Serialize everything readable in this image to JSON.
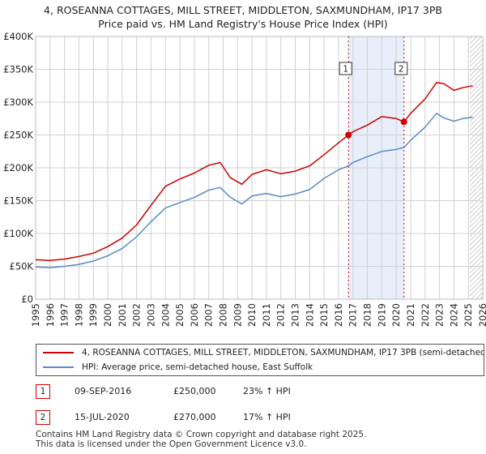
{
  "title_line1": "4, ROSEANNA COTTAGES, MILL STREET, MIDDLETON, SAXMUNDHAM, IP17 3PB",
  "title_line2": "Price paid vs. HM Land Registry's House Price Index (HPI)",
  "colors": {
    "property": "#cc0000",
    "hpi": "#5b8ac6",
    "band": "#e8eefa",
    "grid": "#d0d0d0"
  },
  "legend": {
    "property_label": "4, ROSEANNA COTTAGES, MILL STREET, MIDDLETON, SAXMUNDHAM, IP17 3PB (semi-detached",
    "hpi_label": "HPI: Average price, semi-detached house, East Suffolk"
  },
  "transactions": [
    {
      "num": "1",
      "date": "09-SEP-2016",
      "price": "£250,000",
      "hpi": "23% ↑ HPI"
    },
    {
      "num": "2",
      "date": "15-JUL-2020",
      "price": "£270,000",
      "hpi": "17% ↑ HPI"
    }
  ],
  "footer": {
    "line1": "Contains HM Land Registry data © Crown copyright and database right 2025.",
    "line2": "This data is licensed under the Open Government Licence v3.0."
  },
  "chart_data": {
    "type": "line",
    "title": "4, ROSEANNA COTTAGES, MILL STREET, MIDDLETON, SAXMUNDHAM, IP17 3PB — Price paid vs. HM Land Registry's House Price Index (HPI)",
    "xlabel": "",
    "ylabel": "",
    "xlim": [
      1995,
      2026
    ],
    "ylim": [
      0,
      400000
    ],
    "x_ticks": [
      "1995",
      "1996",
      "1997",
      "1998",
      "1999",
      "2000",
      "2001",
      "2002",
      "2003",
      "2004",
      "2005",
      "2006",
      "2007",
      "2008",
      "2009",
      "2010",
      "2011",
      "2012",
      "2013",
      "2014",
      "2015",
      "2016",
      "2017",
      "2018",
      "2019",
      "2020",
      "2021",
      "2022",
      "2023",
      "2024",
      "2025",
      "2026"
    ],
    "y_ticks": [
      {
        "value": 0,
        "label": "£0"
      },
      {
        "value": 50000,
        "label": "£50K"
      },
      {
        "value": 100000,
        "label": "£100K"
      },
      {
        "value": 150000,
        "label": "£150K"
      },
      {
        "value": 200000,
        "label": "£200K"
      },
      {
        "value": 250000,
        "label": "£250K"
      },
      {
        "value": 300000,
        "label": "£300K"
      },
      {
        "value": 350000,
        "label": "£350K"
      },
      {
        "value": 400000,
        "label": "£400K"
      }
    ],
    "shaded_band": [
      2016.69,
      2020.54
    ],
    "hatched_from": 2025.1,
    "markers": [
      {
        "label": "1",
        "x": 2016.69,
        "y": 250000
      },
      {
        "label": "2",
        "x": 2020.54,
        "y": 270000
      }
    ],
    "series": [
      {
        "name": "4, ROSEANNA COTTAGES, MILL STREET, MIDDLETON, SAXMUNDHAM, IP17 3PB (semi-detached",
        "color": "#cc0000",
        "points": [
          [
            1995,
            60000
          ],
          [
            1996,
            59000
          ],
          [
            1997,
            61000
          ],
          [
            1998,
            65000
          ],
          [
            1999,
            70000
          ],
          [
            2000,
            80000
          ],
          [
            2001,
            93000
          ],
          [
            2002,
            113000
          ],
          [
            2003,
            143000
          ],
          [
            2004,
            172000
          ],
          [
            2005,
            183000
          ],
          [
            2006,
            192000
          ],
          [
            2007,
            204000
          ],
          [
            2007.8,
            208000
          ],
          [
            2008.5,
            185000
          ],
          [
            2009.3,
            175000
          ],
          [
            2010,
            190000
          ],
          [
            2011,
            197000
          ],
          [
            2012,
            191000
          ],
          [
            2013,
            195000
          ],
          [
            2014,
            203000
          ],
          [
            2015,
            220000
          ],
          [
            2016,
            238000
          ],
          [
            2016.69,
            250000
          ],
          [
            2017,
            255000
          ],
          [
            2018,
            265000
          ],
          [
            2019,
            278000
          ],
          [
            2020,
            275000
          ],
          [
            2020.54,
            270000
          ],
          [
            2021,
            283000
          ],
          [
            2022,
            305000
          ],
          [
            2022.8,
            330000
          ],
          [
            2023.3,
            328000
          ],
          [
            2024,
            318000
          ],
          [
            2024.6,
            322000
          ],
          [
            2025.3,
            325000
          ]
        ]
      },
      {
        "name": "HPI: Average price, semi-detached house, East Suffolk",
        "color": "#5b8ac6",
        "points": [
          [
            1995,
            49000
          ],
          [
            1996,
            48000
          ],
          [
            1997,
            50000
          ],
          [
            1998,
            53000
          ],
          [
            1999,
            58000
          ],
          [
            2000,
            66000
          ],
          [
            2001,
            77000
          ],
          [
            2002,
            95000
          ],
          [
            2003,
            118000
          ],
          [
            2004,
            139000
          ],
          [
            2005,
            147000
          ],
          [
            2006,
            155000
          ],
          [
            2007,
            166000
          ],
          [
            2007.8,
            170000
          ],
          [
            2008.5,
            155000
          ],
          [
            2009.3,
            145000
          ],
          [
            2010,
            157000
          ],
          [
            2011,
            161000
          ],
          [
            2012,
            156000
          ],
          [
            2013,
            160000
          ],
          [
            2014,
            167000
          ],
          [
            2015,
            184000
          ],
          [
            2016,
            197000
          ],
          [
            2016.69,
            203000
          ],
          [
            2017,
            208000
          ],
          [
            2018,
            217000
          ],
          [
            2019,
            225000
          ],
          [
            2020,
            228000
          ],
          [
            2020.54,
            231000
          ],
          [
            2021,
            242000
          ],
          [
            2022,
            262000
          ],
          [
            2022.8,
            283000
          ],
          [
            2023.3,
            276000
          ],
          [
            2024,
            271000
          ],
          [
            2024.6,
            275000
          ],
          [
            2025.3,
            277000
          ]
        ]
      }
    ]
  }
}
